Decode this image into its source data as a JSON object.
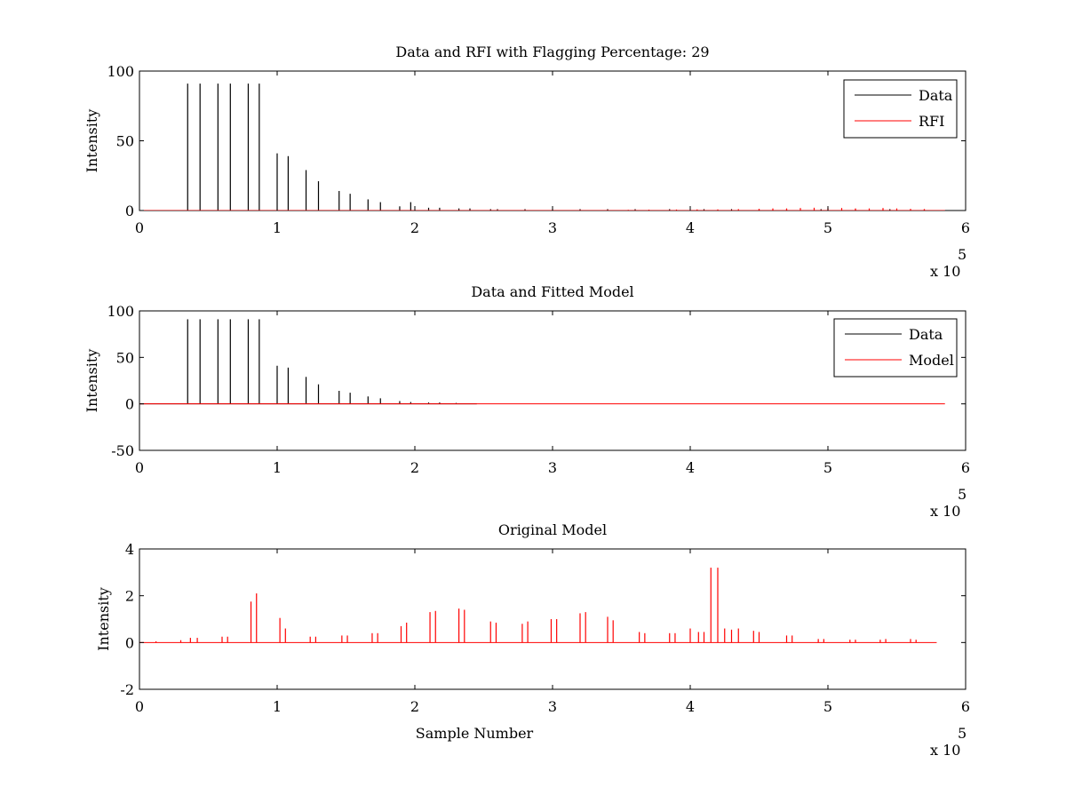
{
  "chart_data": [
    {
      "type": "line",
      "title": "Data and RFI with Flagging Percentage: 29",
      "xlabel": "",
      "ylabel": "Intensity",
      "xlim": [
        0,
        6
      ],
      "ylim": [
        0,
        100
      ],
      "x_ticks": [
        0,
        1,
        2,
        3,
        4,
        5,
        6
      ],
      "y_ticks": [
        0,
        50,
        100
      ],
      "x_multiplier_label": "x 10",
      "x_multiplier_exponent": "5",
      "legend": {
        "placement": "top-right",
        "entries": [
          "Data",
          "RFI"
        ]
      },
      "series": [
        {
          "name": "Data",
          "color": "#000000",
          "x": [
            0.35,
            0.44,
            0.57,
            0.66,
            0.79,
            0.87,
            1.0,
            1.08,
            1.21,
            1.3,
            1.45,
            1.53,
            1.66,
            1.75,
            1.89,
            1.97,
            2.1,
            2.18,
            2.32,
            2.4,
            2.55,
            2.6,
            2.8,
            3.0,
            3.2,
            3.4,
            3.6,
            3.85,
            4.1,
            4.3,
            4.5,
            4.7,
            4.95,
            5.2,
            5.45,
            5.7
          ],
          "values": [
            91,
            91,
            91,
            91,
            91,
            91,
            41,
            39,
            29,
            21,
            14,
            12,
            8,
            6,
            3,
            6,
            2,
            2,
            1.5,
            1.5,
            1,
            1,
            1,
            1,
            1,
            1,
            1,
            1,
            1,
            1,
            1,
            1,
            1,
            1,
            1,
            1
          ]
        },
        {
          "name": "RFI",
          "color": "#ff0000",
          "x": [
            3.55,
            3.7,
            3.9,
            4.05,
            4.2,
            4.35,
            4.5,
            4.6,
            4.7,
            4.8,
            4.9,
            5.0,
            5.1,
            5.2,
            5.3,
            5.4,
            5.5,
            5.6,
            5.7
          ],
          "values": [
            0.5,
            0.6,
            0.7,
            0.8,
            0.8,
            1,
            1.2,
            1.5,
            1.5,
            1.8,
            2,
            2,
            1.8,
            1.5,
            1.5,
            1.8,
            1.5,
            1.2,
            1
          ]
        }
      ]
    },
    {
      "type": "line",
      "title": "Data and Fitted Model",
      "xlabel": "",
      "ylabel": "Intensity",
      "xlim": [
        0,
        6
      ],
      "ylim": [
        -50,
        100
      ],
      "x_ticks": [
        0,
        1,
        2,
        3,
        4,
        5,
        6
      ],
      "y_ticks": [
        -50,
        0,
        50,
        100
      ],
      "x_multiplier_label": "x 10",
      "x_multiplier_exponent": "5",
      "legend": {
        "placement": "top-right",
        "entries": [
          "Data",
          "Model"
        ]
      },
      "series": [
        {
          "name": "Data",
          "color": "#000000",
          "x": [
            0.35,
            0.44,
            0.57,
            0.66,
            0.79,
            0.87,
            1.0,
            1.08,
            1.21,
            1.3,
            1.45,
            1.53,
            1.66,
            1.75,
            1.89,
            1.97,
            2.1,
            2.18,
            2.3
          ],
          "values": [
            91,
            91,
            91,
            91,
            91,
            91,
            41,
            39,
            29,
            21,
            14,
            12,
            8,
            6,
            3,
            2,
            1.5,
            1.5,
            1
          ]
        },
        {
          "name": "Model",
          "color": "#ff0000",
          "x": [
            0,
            5.85
          ],
          "values": [
            0,
            0
          ]
        }
      ]
    },
    {
      "type": "line",
      "title": "Original Model",
      "xlabel": "Sample Number",
      "ylabel": "Intensity",
      "xlim": [
        0,
        6
      ],
      "ylim": [
        -2,
        4
      ],
      "x_ticks": [
        0,
        1,
        2,
        3,
        4,
        5,
        6
      ],
      "y_ticks": [
        -2,
        0,
        2,
        4
      ],
      "x_multiplier_label": "x 10",
      "x_multiplier_exponent": "5",
      "series": [
        {
          "color": "#ff0000",
          "x": [
            0.12,
            0.3,
            0.37,
            0.42,
            0.6,
            0.64,
            0.81,
            0.85,
            1.02,
            1.06,
            1.24,
            1.28,
            1.47,
            1.51,
            1.69,
            1.73,
            1.9,
            1.94,
            2.11,
            2.15,
            2.32,
            2.36,
            2.55,
            2.59,
            2.78,
            2.82,
            2.99,
            3.03,
            3.2,
            3.24,
            3.4,
            3.44,
            3.63,
            3.67,
            3.85,
            3.89,
            4.0,
            4.06,
            4.1,
            4.15,
            4.2,
            4.25,
            4.3,
            4.35,
            4.46,
            4.5,
            4.7,
            4.74,
            4.93,
            4.97,
            5.16,
            5.2,
            5.38,
            5.42,
            5.6,
            5.64
          ],
          "values": [
            0.05,
            0.1,
            0.2,
            0.2,
            0.25,
            0.25,
            1.75,
            2.1,
            1.05,
            0.6,
            0.25,
            0.25,
            0.3,
            0.3,
            0.4,
            0.4,
            0.7,
            0.85,
            1.3,
            1.35,
            1.45,
            1.4,
            0.9,
            0.85,
            0.8,
            0.9,
            1.0,
            1.0,
            1.25,
            1.3,
            1.1,
            0.95,
            0.45,
            0.4,
            0.4,
            0.4,
            0.6,
            0.45,
            0.45,
            3.2,
            3.2,
            0.6,
            0.55,
            0.6,
            0.5,
            0.45,
            0.3,
            0.3,
            0.15,
            0.15,
            0.12,
            0.12,
            0.12,
            0.15,
            0.15,
            0.12
          ]
        }
      ]
    }
  ]
}
